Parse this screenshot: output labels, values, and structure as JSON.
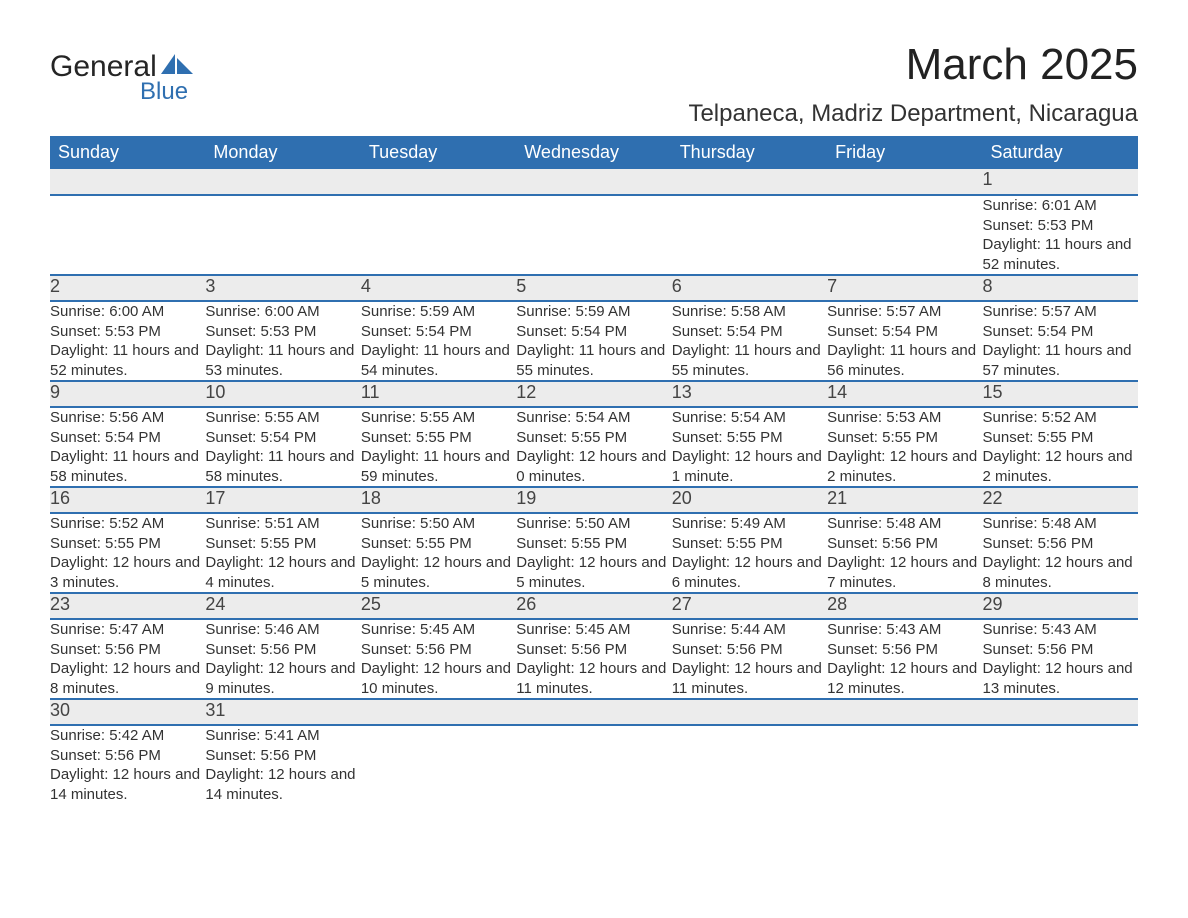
{
  "logo": {
    "line1": "General",
    "line2": "Blue",
    "accent_color": "#2f6fb0"
  },
  "title": "March 2025",
  "location": "Telpaneca, Madriz Department, Nicaragua",
  "colors": {
    "header_bg": "#2f6fb0",
    "header_text": "#ffffff",
    "daynum_bg": "#ececec",
    "row_border": "#2f6fb0",
    "body_text": "#333333",
    "background": "#ffffff"
  },
  "typography": {
    "title_fontsize": 44,
    "location_fontsize": 24,
    "header_fontsize": 18,
    "daynum_fontsize": 18,
    "detail_fontsize": 15
  },
  "calendar": {
    "type": "table",
    "columns": [
      "Sunday",
      "Monday",
      "Tuesday",
      "Wednesday",
      "Thursday",
      "Friday",
      "Saturday"
    ],
    "weeks": [
      [
        null,
        null,
        null,
        null,
        null,
        null,
        {
          "n": "1",
          "sunrise": "6:01 AM",
          "sunset": "5:53 PM",
          "daylight": "11 hours and 52 minutes."
        }
      ],
      [
        {
          "n": "2",
          "sunrise": "6:00 AM",
          "sunset": "5:53 PM",
          "daylight": "11 hours and 52 minutes."
        },
        {
          "n": "3",
          "sunrise": "6:00 AM",
          "sunset": "5:53 PM",
          "daylight": "11 hours and 53 minutes."
        },
        {
          "n": "4",
          "sunrise": "5:59 AM",
          "sunset": "5:54 PM",
          "daylight": "11 hours and 54 minutes."
        },
        {
          "n": "5",
          "sunrise": "5:59 AM",
          "sunset": "5:54 PM",
          "daylight": "11 hours and 55 minutes."
        },
        {
          "n": "6",
          "sunrise": "5:58 AM",
          "sunset": "5:54 PM",
          "daylight": "11 hours and 55 minutes."
        },
        {
          "n": "7",
          "sunrise": "5:57 AM",
          "sunset": "5:54 PM",
          "daylight": "11 hours and 56 minutes."
        },
        {
          "n": "8",
          "sunrise": "5:57 AM",
          "sunset": "5:54 PM",
          "daylight": "11 hours and 57 minutes."
        }
      ],
      [
        {
          "n": "9",
          "sunrise": "5:56 AM",
          "sunset": "5:54 PM",
          "daylight": "11 hours and 58 minutes."
        },
        {
          "n": "10",
          "sunrise": "5:55 AM",
          "sunset": "5:54 PM",
          "daylight": "11 hours and 58 minutes."
        },
        {
          "n": "11",
          "sunrise": "5:55 AM",
          "sunset": "5:55 PM",
          "daylight": "11 hours and 59 minutes."
        },
        {
          "n": "12",
          "sunrise": "5:54 AM",
          "sunset": "5:55 PM",
          "daylight": "12 hours and 0 minutes."
        },
        {
          "n": "13",
          "sunrise": "5:54 AM",
          "sunset": "5:55 PM",
          "daylight": "12 hours and 1 minute."
        },
        {
          "n": "14",
          "sunrise": "5:53 AM",
          "sunset": "5:55 PM",
          "daylight": "12 hours and 2 minutes."
        },
        {
          "n": "15",
          "sunrise": "5:52 AM",
          "sunset": "5:55 PM",
          "daylight": "12 hours and 2 minutes."
        }
      ],
      [
        {
          "n": "16",
          "sunrise": "5:52 AM",
          "sunset": "5:55 PM",
          "daylight": "12 hours and 3 minutes."
        },
        {
          "n": "17",
          "sunrise": "5:51 AM",
          "sunset": "5:55 PM",
          "daylight": "12 hours and 4 minutes."
        },
        {
          "n": "18",
          "sunrise": "5:50 AM",
          "sunset": "5:55 PM",
          "daylight": "12 hours and 5 minutes."
        },
        {
          "n": "19",
          "sunrise": "5:50 AM",
          "sunset": "5:55 PM",
          "daylight": "12 hours and 5 minutes."
        },
        {
          "n": "20",
          "sunrise": "5:49 AM",
          "sunset": "5:55 PM",
          "daylight": "12 hours and 6 minutes."
        },
        {
          "n": "21",
          "sunrise": "5:48 AM",
          "sunset": "5:56 PM",
          "daylight": "12 hours and 7 minutes."
        },
        {
          "n": "22",
          "sunrise": "5:48 AM",
          "sunset": "5:56 PM",
          "daylight": "12 hours and 8 minutes."
        }
      ],
      [
        {
          "n": "23",
          "sunrise": "5:47 AM",
          "sunset": "5:56 PM",
          "daylight": "12 hours and 8 minutes."
        },
        {
          "n": "24",
          "sunrise": "5:46 AM",
          "sunset": "5:56 PM",
          "daylight": "12 hours and 9 minutes."
        },
        {
          "n": "25",
          "sunrise": "5:45 AM",
          "sunset": "5:56 PM",
          "daylight": "12 hours and 10 minutes."
        },
        {
          "n": "26",
          "sunrise": "5:45 AM",
          "sunset": "5:56 PM",
          "daylight": "12 hours and 11 minutes."
        },
        {
          "n": "27",
          "sunrise": "5:44 AM",
          "sunset": "5:56 PM",
          "daylight": "12 hours and 11 minutes."
        },
        {
          "n": "28",
          "sunrise": "5:43 AM",
          "sunset": "5:56 PM",
          "daylight": "12 hours and 12 minutes."
        },
        {
          "n": "29",
          "sunrise": "5:43 AM",
          "sunset": "5:56 PM",
          "daylight": "12 hours and 13 minutes."
        }
      ],
      [
        {
          "n": "30",
          "sunrise": "5:42 AM",
          "sunset": "5:56 PM",
          "daylight": "12 hours and 14 minutes."
        },
        {
          "n": "31",
          "sunrise": "5:41 AM",
          "sunset": "5:56 PM",
          "daylight": "12 hours and 14 minutes."
        },
        null,
        null,
        null,
        null,
        null
      ]
    ],
    "labels": {
      "sunrise": "Sunrise: ",
      "sunset": "Sunset: ",
      "daylight": "Daylight: "
    }
  }
}
